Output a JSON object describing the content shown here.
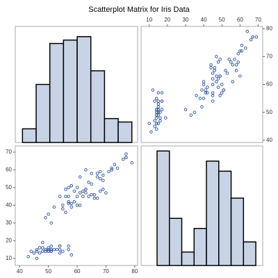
{
  "title": "Scatterplot Matrix for Iris Data",
  "chart_data": [
    {
      "type": "histogram",
      "bins": [
        41,
        45.75,
        50.5,
        55.25,
        60,
        64.75,
        69.5,
        74.25,
        79
      ],
      "values": [
        4,
        17,
        29,
        30,
        31,
        21,
        7,
        6
      ],
      "xlim": [
        38.5,
        81
      ],
      "ylim": [
        0,
        34
      ],
      "color": "#c8d3e6",
      "edgecolor": "#000000"
    },
    {
      "type": "scatter",
      "x": [
        14,
        14,
        13,
        15,
        14,
        17,
        14,
        15,
        14,
        15,
        15,
        16,
        14,
        11,
        12,
        15,
        13,
        14,
        17,
        15,
        17,
        15,
        10,
        17,
        19,
        16,
        15,
        16,
        14,
        13,
        15,
        14,
        47,
        45,
        49,
        40,
        46,
        45,
        47,
        33,
        46,
        39,
        35,
        42,
        40,
        47,
        36,
        44,
        45,
        41,
        45,
        48,
        40,
        49,
        44,
        48,
        45,
        38,
        39,
        45,
        42,
        30,
        41,
        60,
        51,
        59,
        58,
        66,
        63,
        58,
        61,
        53,
        55,
        50,
        67,
        69,
        50,
        57,
        49,
        67,
        49,
        60,
        48,
        64,
        61,
        56,
        56,
        54,
        51,
        59,
        52
      ],
      "values": [
        51,
        49,
        47,
        46,
        50,
        54,
        46,
        50,
        44,
        49,
        54,
        48,
        48,
        43,
        58,
        57,
        54,
        51,
        57,
        51,
        54,
        51,
        46,
        51,
        48,
        50,
        52,
        47,
        55,
        45,
        53,
        50,
        70,
        64,
        69,
        55,
        65,
        57,
        63,
        49,
        66,
        52,
        50,
        59,
        60,
        61,
        56,
        67,
        56,
        58,
        62,
        59,
        61,
        63,
        66,
        68,
        60,
        55,
        58,
        54,
        57,
        51,
        57,
        63,
        58,
        71,
        65,
        76,
        73,
        67,
        72,
        64,
        68,
        57,
        77,
        77,
        60,
        69,
        56,
        77,
        63,
        72,
        62,
        79,
        74,
        61,
        67,
        69,
        58,
        68,
        65
      ],
      "xlim": [
        5.5,
        72.5
      ],
      "ylim": [
        39.2,
        80.8
      ],
      "xticks": [
        10,
        20,
        30,
        40,
        50,
        60,
        70
      ],
      "yticks": [
        40,
        50,
        60,
        70,
        80
      ],
      "x_axis_position": "top",
      "y_axis_position": "right",
      "color": "#2a4f9a"
    },
    {
      "type": "scatter",
      "x": [
        51,
        49,
        47,
        46,
        50,
        54,
        46,
        50,
        44,
        49,
        54,
        48,
        48,
        43,
        58,
        57,
        54,
        51,
        57,
        51,
        54,
        51,
        46,
        51,
        48,
        50,
        52,
        47,
        55,
        45,
        53,
        50,
        70,
        64,
        69,
        55,
        65,
        57,
        63,
        49,
        66,
        52,
        50,
        59,
        60,
        61,
        56,
        67,
        56,
        58,
        62,
        59,
        61,
        63,
        66,
        68,
        60,
        55,
        58,
        54,
        57,
        51,
        57,
        63,
        58,
        71,
        65,
        76,
        73,
        67,
        72,
        64,
        68,
        57,
        77,
        77,
        60,
        69,
        56,
        77,
        63,
        72,
        62,
        79,
        74,
        61,
        67,
        69,
        58,
        68,
        65
      ],
      "values": [
        14,
        14,
        13,
        15,
        14,
        17,
        14,
        15,
        14,
        15,
        15,
        16,
        14,
        11,
        12,
        15,
        13,
        14,
        17,
        15,
        17,
        15,
        10,
        17,
        19,
        16,
        15,
        16,
        14,
        13,
        15,
        14,
        47,
        45,
        49,
        40,
        46,
        45,
        47,
        33,
        46,
        39,
        35,
        42,
        40,
        47,
        36,
        44,
        45,
        41,
        45,
        48,
        40,
        49,
        44,
        48,
        45,
        38,
        39,
        45,
        42,
        30,
        41,
        60,
        51,
        59,
        58,
        66,
        63,
        58,
        61,
        53,
        55,
        50,
        67,
        69,
        50,
        57,
        49,
        67,
        49,
        60,
        48,
        64,
        61,
        56,
        56,
        54,
        51,
        59,
        52
      ],
      "xlim": [
        38.5,
        81
      ],
      "ylim": [
        6,
        73.5
      ],
      "xticks": [
        40,
        50,
        60,
        70,
        80
      ],
      "yticks": [
        10,
        20,
        30,
        40,
        50,
        60,
        70
      ],
      "x_axis_position": "bottom",
      "y_axis_position": "left",
      "color": "#2a4f9a"
    },
    {
      "type": "histogram",
      "bins": [
        14.3,
        21.1,
        27.9,
        34.7,
        41.5,
        48.3,
        55.1,
        61.9,
        68.7
      ],
      "values": [
        34,
        14,
        4,
        11,
        31,
        28,
        20,
        7
      ],
      "xlim": [
        5.5,
        72.5
      ],
      "ylim": [
        0,
        35.5
      ],
      "color": "#c8d3e6",
      "edgecolor": "#000000"
    }
  ]
}
